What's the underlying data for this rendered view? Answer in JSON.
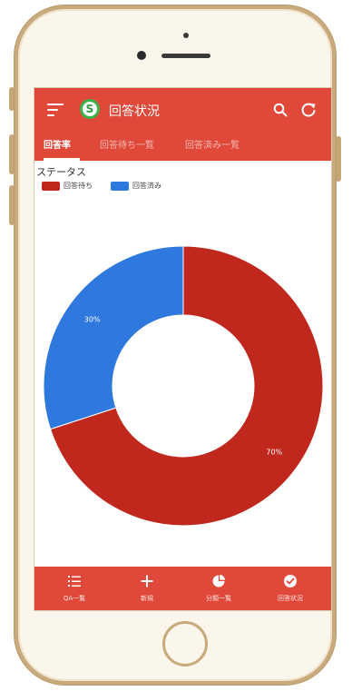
{
  "app": {
    "title": "回答状況"
  },
  "tabs": [
    {
      "label": "回答率",
      "active": true
    },
    {
      "label": "回答待ち一覧",
      "active": false
    },
    {
      "label": "回答済み一覧",
      "active": false
    }
  ],
  "status_label": "ステータス",
  "colors": {
    "primary": "#e0493a",
    "pending": "#c0271d",
    "answered": "#2f78dd"
  },
  "chart_data": {
    "type": "pie",
    "categories": [
      "回答待ち",
      "回答済み"
    ],
    "values": [
      70,
      30
    ],
    "data_labels": [
      "70%",
      "30%"
    ],
    "legend": "top-left",
    "donut": true
  },
  "bottom_nav": [
    {
      "label": "QA一覧",
      "icon": "list-icon"
    },
    {
      "label": "新規",
      "icon": "plus-icon"
    },
    {
      "label": "分類一覧",
      "icon": "pie-chart-icon"
    },
    {
      "label": "回答状況",
      "icon": "check-circle-icon"
    }
  ]
}
